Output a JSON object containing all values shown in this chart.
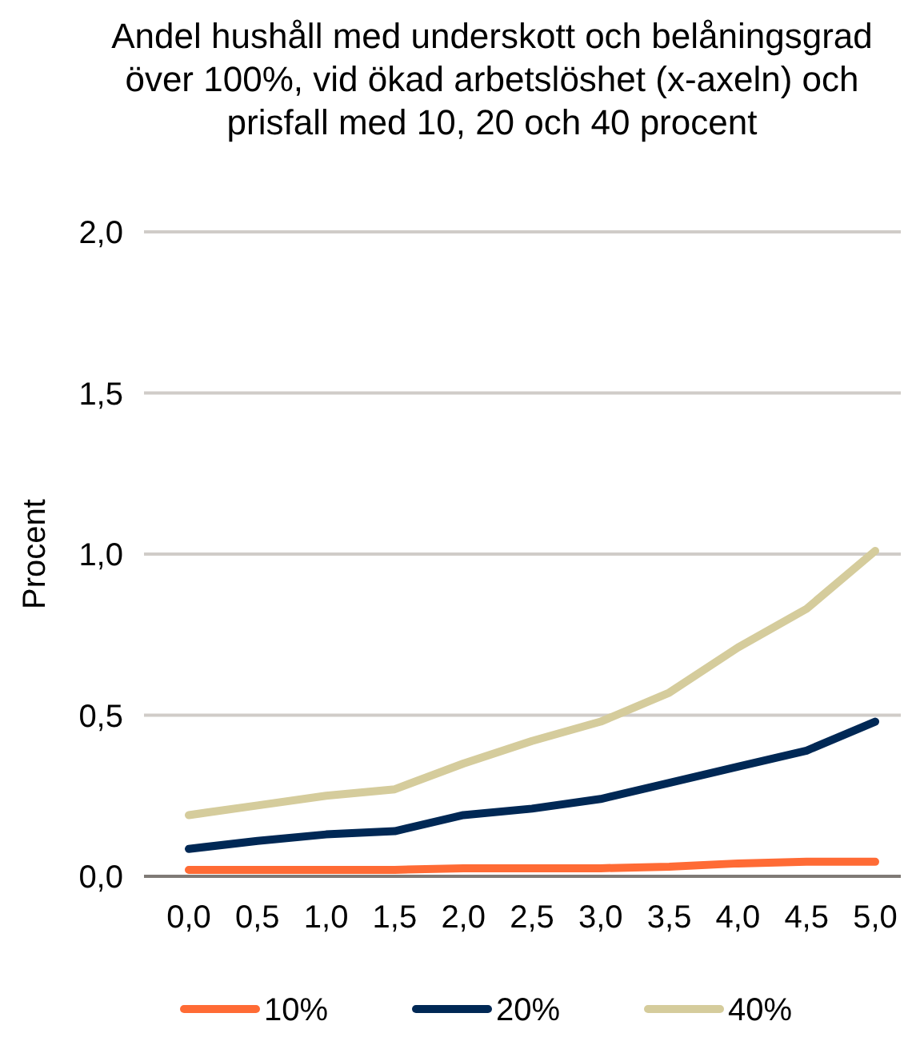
{
  "chart_data": {
    "type": "line",
    "title": "Andel hushåll med underskott och belåningsgrad över 100%, vid ökad arbetslöshet (x-axeln) och prisfall med 10, 20 och 40 procent",
    "ylabel": "Procent",
    "categories": [
      "0,0",
      "0,5",
      "1,0",
      "1,5",
      "2,0",
      "2,5",
      "3,0",
      "3,5",
      "4,0",
      "4,5",
      "5,0"
    ],
    "series": [
      {
        "name": "10%",
        "color": "#ff6b35",
        "values": [
          0.02,
          0.02,
          0.02,
          0.02,
          0.025,
          0.025,
          0.025,
          0.03,
          0.04,
          0.045,
          0.045
        ]
      },
      {
        "name": "20%",
        "color": "#002855",
        "values": [
          0.085,
          0.11,
          0.13,
          0.14,
          0.19,
          0.21,
          0.24,
          0.29,
          0.34,
          0.39,
          0.48
        ]
      },
      {
        "name": "40%",
        "color": "#d5cc9c",
        "values": [
          0.19,
          0.22,
          0.25,
          0.27,
          0.35,
          0.42,
          0.48,
          0.57,
          0.71,
          0.83,
          1.01
        ]
      }
    ],
    "ylim": [
      0,
      2
    ],
    "yticks": [
      {
        "value": 0,
        "label": "0,0"
      },
      {
        "value": 0.5,
        "label": "0,5"
      },
      {
        "value": 1,
        "label": "1,0"
      },
      {
        "value": 1.5,
        "label": "1,5"
      },
      {
        "value": 2,
        "label": "2,0"
      }
    ],
    "grid": "y",
    "legend": "bottom",
    "marker": "none",
    "line_style": "solid"
  }
}
